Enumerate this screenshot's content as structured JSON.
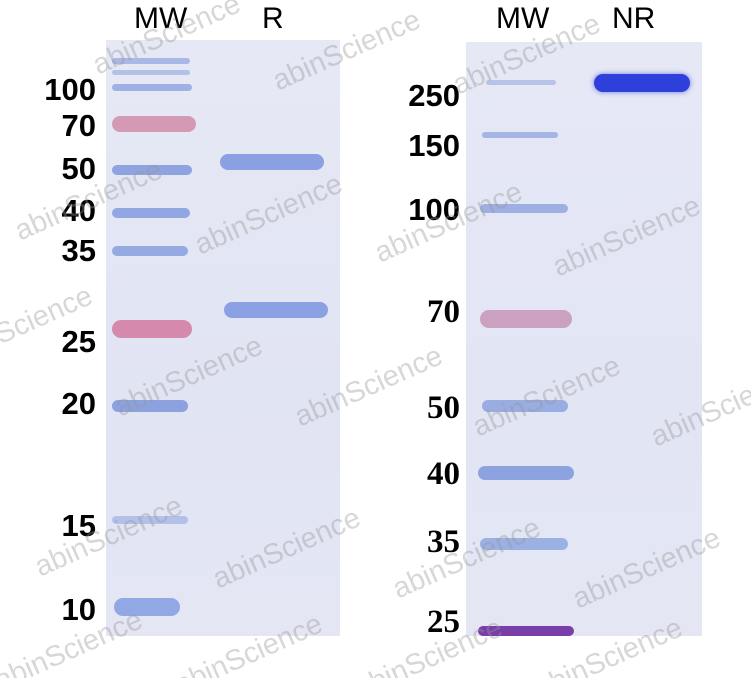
{
  "left_panel": {
    "headers": {
      "mw": "MW",
      "lane": "R"
    },
    "markers": [
      "100",
      "70",
      "50",
      "40",
      "35",
      "25",
      "20",
      "15",
      "10"
    ]
  },
  "right_panel": {
    "headers": {
      "mw": "MW",
      "lane": "NR"
    },
    "markers": [
      "250",
      "150",
      "100",
      "70",
      "50",
      "40",
      "35",
      "25"
    ]
  },
  "watermark": "abinScience",
  "colors": {
    "gel_background": "#e4e6f4",
    "marker_blue": "#7d97dc",
    "marker_pink": "#c88ab0",
    "sample_band": "#6f8be0",
    "nr_band": "#2a3dd8"
  }
}
